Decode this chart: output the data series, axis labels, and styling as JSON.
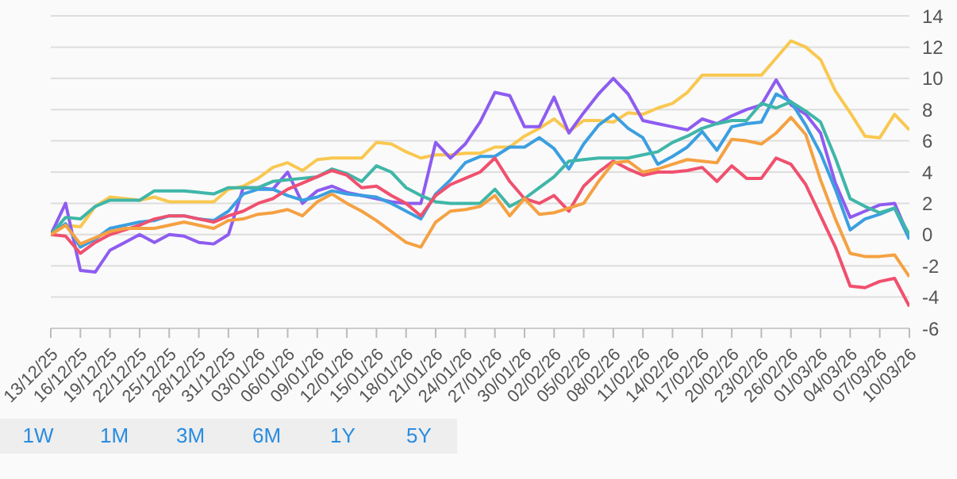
{
  "chart_data": {
    "type": "line",
    "categories": [
      "13/12/25",
      null,
      "16/12/25",
      null,
      "19/12/25",
      null,
      "22/12/25",
      null,
      "25/12/25",
      null,
      "28/12/25",
      null,
      "31/12/25",
      null,
      "03/01/26",
      null,
      "06/01/26",
      null,
      "09/01/26",
      null,
      "12/01/26",
      null,
      "15/01/26",
      null,
      "18/01/26",
      null,
      "21/01/26",
      null,
      "24/01/26",
      null,
      "27/01/26",
      null,
      "30/01/26",
      null,
      "02/02/26",
      null,
      "05/02/26",
      null,
      "08/02/26",
      null,
      "11/02/26",
      null,
      "14/02/26",
      null,
      "17/02/26",
      null,
      "20/02/26",
      null,
      "23/02/26",
      null,
      "26/02/26",
      null,
      "01/03/26",
      null,
      "04/03/26",
      null,
      "07/03/26",
      null,
      "10/03/26"
    ],
    "series": [
      {
        "color": "#f9c851",
        "values": [
          0,
          0.6,
          0.5,
          1.8,
          2.4,
          2.3,
          2.2,
          2.4,
          2.1,
          2.1,
          2.1,
          2.1,
          2.9,
          3.1,
          3.6,
          4.3,
          4.6,
          4.1,
          4.8,
          4.9,
          4.9,
          4.9,
          5.9,
          5.8,
          5.3,
          4.9,
          5.1,
          5.1,
          5.2,
          5.2,
          5.6,
          5.6,
          6.3,
          6.8,
          7.4,
          6.6,
          7.3,
          7.3,
          7.2,
          7.8,
          7.7,
          8.1,
          8.4,
          9.1,
          10.2,
          10.2,
          10.2,
          10.2,
          10.2,
          11.3,
          12.4,
          12,
          11.2,
          9.2,
          7.8,
          6.3,
          6.2,
          7.7,
          6.7
        ]
      },
      {
        "color": "#8e5cf0",
        "values": [
          0,
          2,
          -2.3,
          -2.4,
          -1,
          -0.5,
          0,
          -0.5,
          0,
          -0.1,
          -0.5,
          -0.6,
          0,
          3,
          3,
          2.9,
          4,
          2,
          2.8,
          3.1,
          2.7,
          2.5,
          2.3,
          2.1,
          2,
          2,
          5.9,
          4.9,
          5.8,
          7.2,
          9.1,
          8.9,
          6.9,
          6.9,
          8.8,
          6.5,
          7.8,
          9,
          10,
          9,
          7.3,
          7.1,
          6.9,
          6.7,
          7.4,
          7.1,
          7.6,
          8,
          8.3,
          9.9,
          8.3,
          7.7,
          6.5,
          3.3,
          1.1,
          1.5,
          1.9,
          2,
          -0.2
        ]
      },
      {
        "color": "#3b9fe0",
        "values": [
          0,
          0.7,
          -0.8,
          -0.3,
          0.4,
          0.6,
          0.8,
          0.9,
          1.2,
          1.2,
          1,
          0.9,
          1.5,
          2.6,
          2.9,
          2.9,
          2.5,
          2.2,
          2.4,
          2.8,
          2.6,
          2.5,
          2.4,
          2,
          1.5,
          1,
          2.6,
          3.5,
          4.6,
          5,
          5,
          5.6,
          5.6,
          6.2,
          5.5,
          4.2,
          5.8,
          7,
          7.7,
          6.8,
          6.2,
          4.5,
          5,
          5.6,
          6.6,
          5.4,
          6.9,
          7.1,
          7.2,
          9,
          8.5,
          7,
          5.2,
          2.9,
          0.3,
          1,
          1.3,
          1.7,
          -0.3
        ]
      },
      {
        "color": "#3fb6a8",
        "values": [
          0,
          1.1,
          1,
          1.8,
          2.2,
          2.2,
          2.2,
          2.8,
          2.8,
          2.8,
          2.7,
          2.6,
          3,
          3,
          3,
          3.4,
          3.5,
          3.6,
          3.7,
          4.2,
          3.9,
          3.4,
          4.4,
          4,
          3,
          2.5,
          2.1,
          2,
          2,
          2,
          2.9,
          1.8,
          2.3,
          3,
          3.7,
          4.7,
          4.8,
          4.9,
          4.9,
          4.9,
          5.1,
          5.3,
          5.9,
          6.3,
          6.8,
          7.1,
          7.3,
          7.3,
          8.4,
          8.1,
          8.5,
          7.9,
          7.2,
          4.9,
          2.3,
          1.8,
          1.4,
          1.7,
          0
        ]
      },
      {
        "color": "#f0506e",
        "values": [
          0,
          -0.1,
          -1.2,
          -0.5,
          0,
          0.3,
          0.6,
          1,
          1.2,
          1.2,
          1,
          0.8,
          1.2,
          1.5,
          2,
          2.3,
          2.9,
          3.3,
          3.7,
          4.1,
          3.8,
          3,
          3.1,
          2.5,
          2,
          1.2,
          2.5,
          3.2,
          3.6,
          4,
          4.9,
          3.4,
          2.3,
          2,
          2.5,
          1.5,
          3.1,
          4,
          4.7,
          4.2,
          3.8,
          4,
          4,
          4.1,
          4.3,
          3.4,
          4.4,
          3.6,
          3.6,
          4.9,
          4.5,
          3.2,
          1.2,
          -0.8,
          -3.3,
          -3.4,
          -3,
          -2.8,
          -4.6
        ]
      },
      {
        "color": "#f5a142",
        "values": [
          0,
          0.6,
          -0.6,
          -0.2,
          0.2,
          0.4,
          0.4,
          0.4,
          0.6,
          0.8,
          0.6,
          0.4,
          0.9,
          1,
          1.3,
          1.4,
          1.6,
          1.2,
          2.1,
          2.6,
          2,
          1.5,
          0.9,
          0.2,
          -0.5,
          -0.8,
          0.8,
          1.5,
          1.6,
          1.8,
          2.5,
          1.2,
          2.3,
          1.3,
          1.4,
          1.7,
          2,
          3.4,
          4.6,
          4.7,
          4,
          4.2,
          4.5,
          4.8,
          4.7,
          4.6,
          6.1,
          6,
          5.8,
          6.5,
          7.5,
          6.4,
          3.5,
          1,
          -1.2,
          -1.4,
          -1.4,
          -1.3,
          -2.7
        ]
      }
    ],
    "ylim": [
      -6,
      14
    ],
    "yticks": [
      -6,
      -4,
      -2,
      0,
      2,
      4,
      6,
      8,
      10,
      12,
      14
    ],
    "grid": "y",
    "marker": "none",
    "line_style": "solid",
    "annotations": [
      "1W",
      "1M",
      "3M",
      "6M",
      "1Y",
      "5Y"
    ]
  }
}
